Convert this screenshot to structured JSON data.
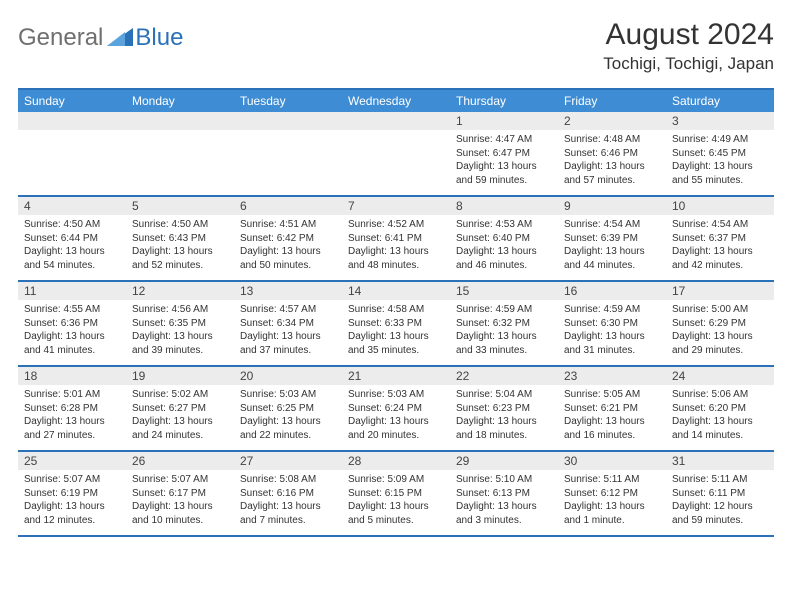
{
  "logo": {
    "general": "General",
    "blue": "Blue"
  },
  "title": "August 2024",
  "location": "Tochigi, Tochigi, Japan",
  "colors": {
    "header_bg": "#3e8dd4",
    "border": "#2a71b8",
    "daynum_bg": "#ececec",
    "logo_gray": "#6f6f6f",
    "logo_blue": "#2a71b8"
  },
  "day_headers": [
    "Sunday",
    "Monday",
    "Tuesday",
    "Wednesday",
    "Thursday",
    "Friday",
    "Saturday"
  ],
  "weeks": [
    [
      null,
      null,
      null,
      null,
      {
        "n": "1",
        "sr": "4:47 AM",
        "ss": "6:47 PM",
        "dl": "13 hours and 59 minutes."
      },
      {
        "n": "2",
        "sr": "4:48 AM",
        "ss": "6:46 PM",
        "dl": "13 hours and 57 minutes."
      },
      {
        "n": "3",
        "sr": "4:49 AM",
        "ss": "6:45 PM",
        "dl": "13 hours and 55 minutes."
      }
    ],
    [
      {
        "n": "4",
        "sr": "4:50 AM",
        "ss": "6:44 PM",
        "dl": "13 hours and 54 minutes."
      },
      {
        "n": "5",
        "sr": "4:50 AM",
        "ss": "6:43 PM",
        "dl": "13 hours and 52 minutes."
      },
      {
        "n": "6",
        "sr": "4:51 AM",
        "ss": "6:42 PM",
        "dl": "13 hours and 50 minutes."
      },
      {
        "n": "7",
        "sr": "4:52 AM",
        "ss": "6:41 PM",
        "dl": "13 hours and 48 minutes."
      },
      {
        "n": "8",
        "sr": "4:53 AM",
        "ss": "6:40 PM",
        "dl": "13 hours and 46 minutes."
      },
      {
        "n": "9",
        "sr": "4:54 AM",
        "ss": "6:39 PM",
        "dl": "13 hours and 44 minutes."
      },
      {
        "n": "10",
        "sr": "4:54 AM",
        "ss": "6:37 PM",
        "dl": "13 hours and 42 minutes."
      }
    ],
    [
      {
        "n": "11",
        "sr": "4:55 AM",
        "ss": "6:36 PM",
        "dl": "13 hours and 41 minutes."
      },
      {
        "n": "12",
        "sr": "4:56 AM",
        "ss": "6:35 PM",
        "dl": "13 hours and 39 minutes."
      },
      {
        "n": "13",
        "sr": "4:57 AM",
        "ss": "6:34 PM",
        "dl": "13 hours and 37 minutes."
      },
      {
        "n": "14",
        "sr": "4:58 AM",
        "ss": "6:33 PM",
        "dl": "13 hours and 35 minutes."
      },
      {
        "n": "15",
        "sr": "4:59 AM",
        "ss": "6:32 PM",
        "dl": "13 hours and 33 minutes."
      },
      {
        "n": "16",
        "sr": "4:59 AM",
        "ss": "6:30 PM",
        "dl": "13 hours and 31 minutes."
      },
      {
        "n": "17",
        "sr": "5:00 AM",
        "ss": "6:29 PM",
        "dl": "13 hours and 29 minutes."
      }
    ],
    [
      {
        "n": "18",
        "sr": "5:01 AM",
        "ss": "6:28 PM",
        "dl": "13 hours and 27 minutes."
      },
      {
        "n": "19",
        "sr": "5:02 AM",
        "ss": "6:27 PM",
        "dl": "13 hours and 24 minutes."
      },
      {
        "n": "20",
        "sr": "5:03 AM",
        "ss": "6:25 PM",
        "dl": "13 hours and 22 minutes."
      },
      {
        "n": "21",
        "sr": "5:03 AM",
        "ss": "6:24 PM",
        "dl": "13 hours and 20 minutes."
      },
      {
        "n": "22",
        "sr": "5:04 AM",
        "ss": "6:23 PM",
        "dl": "13 hours and 18 minutes."
      },
      {
        "n": "23",
        "sr": "5:05 AM",
        "ss": "6:21 PM",
        "dl": "13 hours and 16 minutes."
      },
      {
        "n": "24",
        "sr": "5:06 AM",
        "ss": "6:20 PM",
        "dl": "13 hours and 14 minutes."
      }
    ],
    [
      {
        "n": "25",
        "sr": "5:07 AM",
        "ss": "6:19 PM",
        "dl": "13 hours and 12 minutes."
      },
      {
        "n": "26",
        "sr": "5:07 AM",
        "ss": "6:17 PM",
        "dl": "13 hours and 10 minutes."
      },
      {
        "n": "27",
        "sr": "5:08 AM",
        "ss": "6:16 PM",
        "dl": "13 hours and 7 minutes."
      },
      {
        "n": "28",
        "sr": "5:09 AM",
        "ss": "6:15 PM",
        "dl": "13 hours and 5 minutes."
      },
      {
        "n": "29",
        "sr": "5:10 AM",
        "ss": "6:13 PM",
        "dl": "13 hours and 3 minutes."
      },
      {
        "n": "30",
        "sr": "5:11 AM",
        "ss": "6:12 PM",
        "dl": "13 hours and 1 minute."
      },
      {
        "n": "31",
        "sr": "5:11 AM",
        "ss": "6:11 PM",
        "dl": "12 hours and 59 minutes."
      }
    ]
  ],
  "labels": {
    "sunrise": "Sunrise: ",
    "sunset": "Sunset: ",
    "daylight": "Daylight: "
  }
}
